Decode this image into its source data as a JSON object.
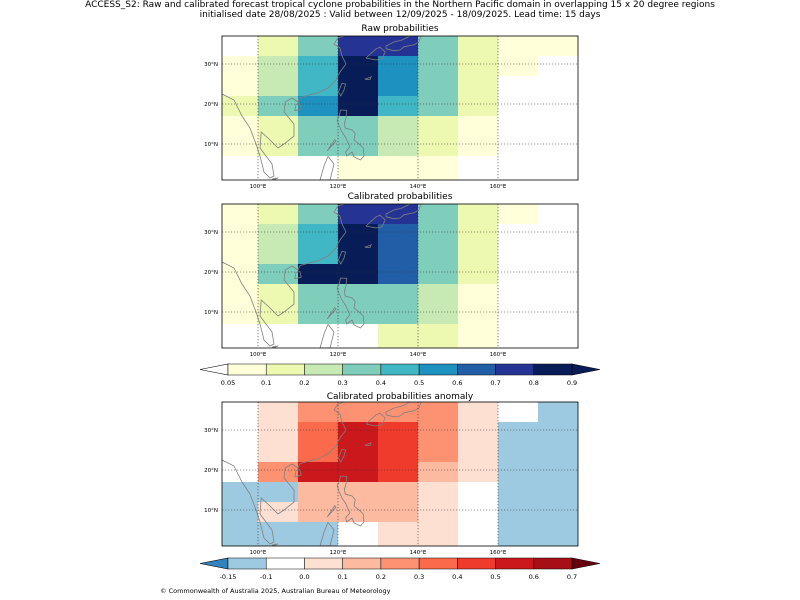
{
  "figure": {
    "title_line1": "ACCESS_S2: Raw and calibrated forecast tropical cyclone probabilities in the Northern Pacific domain in overlapping 15 x 20 degree regions",
    "title_line2": "initialised date 28/08/2025 :  Valid between 12/09/2025 - 18/09/2025. Lead time: 15 days",
    "credit": "© Commonwealth of Australia 2025, Australian Bureau of Meteorology"
  },
  "chart_data": [
    {
      "type": "heatmap",
      "title": "Raw probabilities",
      "lon_range": [
        91,
        180
      ],
      "lat_range": [
        1,
        37
      ],
      "x_ticks": [
        "100°E",
        "120°E",
        "140°E",
        "160°E"
      ],
      "x_tick_values": [
        100,
        120,
        140,
        160
      ],
      "y_ticks": [
        "10°N",
        "20°N",
        "30°N"
      ],
      "y_tick_values": [
        10,
        20,
        30
      ],
      "grid": true,
      "cell_lon_edges": [
        91,
        100,
        110,
        120,
        130,
        140,
        150,
        160,
        170,
        180
      ],
      "cell_lat_edges": [
        37,
        32,
        27,
        22,
        17,
        12,
        7,
        1
      ],
      "values": [
        [
          null,
          0.12,
          0.35,
          0.75,
          0.75,
          0.35,
          0.12,
          0.07,
          0.07
        ],
        [
          0.07,
          0.25,
          0.45,
          0.85,
          0.55,
          0.35,
          0.12,
          0.07,
          null
        ],
        [
          0.07,
          0.25,
          0.45,
          0.85,
          0.55,
          0.35,
          0.12,
          null,
          null
        ],
        [
          0.12,
          0.35,
          0.55,
          0.85,
          0.45,
          0.3,
          0.12,
          null,
          null
        ],
        [
          0.07,
          0.12,
          0.3,
          0.3,
          0.25,
          0.12,
          0.07,
          null,
          null
        ],
        [
          0.07,
          0.12,
          0.3,
          0.3,
          0.25,
          0.12,
          0.07,
          null,
          null
        ],
        [
          null,
          null,
          null,
          0.07,
          0.07,
          0.07,
          null,
          null,
          null
        ]
      ],
      "colorbar": "probability"
    },
    {
      "type": "heatmap",
      "title": "Calibrated probabilities",
      "lon_range": [
        91,
        180
      ],
      "lat_range": [
        1,
        37
      ],
      "x_ticks": [
        "100°E",
        "120°E",
        "140°E",
        "160°E"
      ],
      "x_tick_values": [
        100,
        120,
        140,
        160
      ],
      "y_ticks": [
        "10°N",
        "20°N",
        "30°N"
      ],
      "y_tick_values": [
        10,
        20,
        30
      ],
      "grid": true,
      "cell_lon_edges": [
        91,
        100,
        110,
        120,
        130,
        140,
        150,
        160,
        170,
        180
      ],
      "cell_lat_edges": [
        37,
        32,
        27,
        22,
        17,
        12,
        7,
        1
      ],
      "values": [
        [
          0.07,
          0.12,
          0.35,
          0.75,
          0.75,
          0.3,
          0.12,
          0.07,
          null
        ],
        [
          0.07,
          0.25,
          0.45,
          0.85,
          0.65,
          0.35,
          0.12,
          null,
          null
        ],
        [
          0.07,
          0.25,
          0.45,
          0.85,
          0.65,
          0.35,
          0.12,
          null,
          null
        ],
        [
          0.07,
          0.3,
          0.85,
          0.85,
          0.65,
          0.3,
          0.12,
          null,
          null
        ],
        [
          0.07,
          0.12,
          0.3,
          0.35,
          0.3,
          0.25,
          0.07,
          null,
          null
        ],
        [
          0.07,
          0.12,
          0.3,
          0.35,
          0.3,
          0.25,
          0.07,
          null,
          null
        ],
        [
          null,
          null,
          null,
          null,
          0.12,
          0.12,
          0.07,
          null,
          null
        ]
      ],
      "colorbar": "probability"
    },
    {
      "type": "heatmap",
      "title": "Calibrated probabilities anomaly",
      "lon_range": [
        91,
        180
      ],
      "lat_range": [
        1,
        37
      ],
      "x_ticks": [
        "100°E",
        "120°E",
        "140°E",
        "160°E"
      ],
      "x_tick_values": [
        100,
        120,
        140,
        160
      ],
      "y_ticks": [
        "10°N",
        "20°N",
        "30°N"
      ],
      "y_tick_values": [
        10,
        20,
        30
      ],
      "grid": true,
      "cell_lon_edges": [
        91,
        100,
        110,
        120,
        130,
        140,
        150,
        160,
        170,
        180
      ],
      "cell_lat_edges": [
        37,
        32,
        27,
        22,
        17,
        12,
        7,
        1
      ],
      "values": [
        [
          -0.05,
          0.0,
          0.25,
          0.25,
          0.25,
          0.25,
          0.0,
          -0.05,
          -0.12
        ],
        [
          -0.05,
          0.05,
          0.35,
          0.55,
          0.45,
          0.25,
          0.0,
          -0.12,
          -0.12
        ],
        [
          -0.05,
          0.05,
          0.35,
          0.55,
          0.45,
          0.25,
          0.0,
          -0.12,
          -0.12
        ],
        [
          -0.05,
          0.25,
          0.55,
          0.55,
          0.45,
          0.15,
          0.0,
          -0.12,
          -0.12
        ],
        [
          -0.12,
          -0.12,
          0.15,
          0.15,
          0.15,
          0.05,
          -0.05,
          -0.12,
          -0.12
        ],
        [
          -0.12,
          0.0,
          0.15,
          0.15,
          0.15,
          0.05,
          -0.05,
          -0.12,
          -0.12
        ],
        [
          -0.12,
          -0.12,
          -0.12,
          -0.05,
          0.0,
          0.0,
          -0.05,
          -0.12,
          -0.12
        ]
      ],
      "colorbar": "anomaly"
    }
  ],
  "colorbars": {
    "probability": {
      "boundaries": [
        0.05,
        0.1,
        0.2,
        0.3,
        0.4,
        0.5,
        0.6,
        0.7,
        0.8,
        0.9
      ],
      "labels": [
        "0.05",
        "0.1",
        "0.2",
        "0.3",
        "0.4",
        "0.5",
        "0.6",
        "0.7",
        "0.8",
        "0.9"
      ],
      "colors": [
        "#ffffd9",
        "#edf8b1",
        "#c7e9b4",
        "#7fcdbb",
        "#41b6c4",
        "#1d91c0",
        "#225ea8",
        "#253494",
        "#081d58"
      ],
      "under_color": "#ffffff",
      "over_color": "#081d58"
    },
    "anomaly": {
      "boundaries": [
        -0.15,
        -0.1,
        0.0,
        0.1,
        0.2,
        0.3,
        0.4,
        0.5,
        0.6,
        0.7
      ],
      "labels": [
        "-0.15",
        "-0.1",
        "0.0",
        "0.1",
        "0.2",
        "0.3",
        "0.4",
        "0.5",
        "0.6",
        "0.7"
      ],
      "colors": [
        "#9ecae1",
        "#ffffff",
        "#fee0d2",
        "#fcbba1",
        "#fc9272",
        "#fb6a4a",
        "#ef3b2c",
        "#cb181d",
        "#a50f15"
      ],
      "under_color": "#3182bd",
      "over_color": "#67000d"
    }
  },
  "colors": {
    "coastline": "#808080",
    "grid": "#333333"
  }
}
